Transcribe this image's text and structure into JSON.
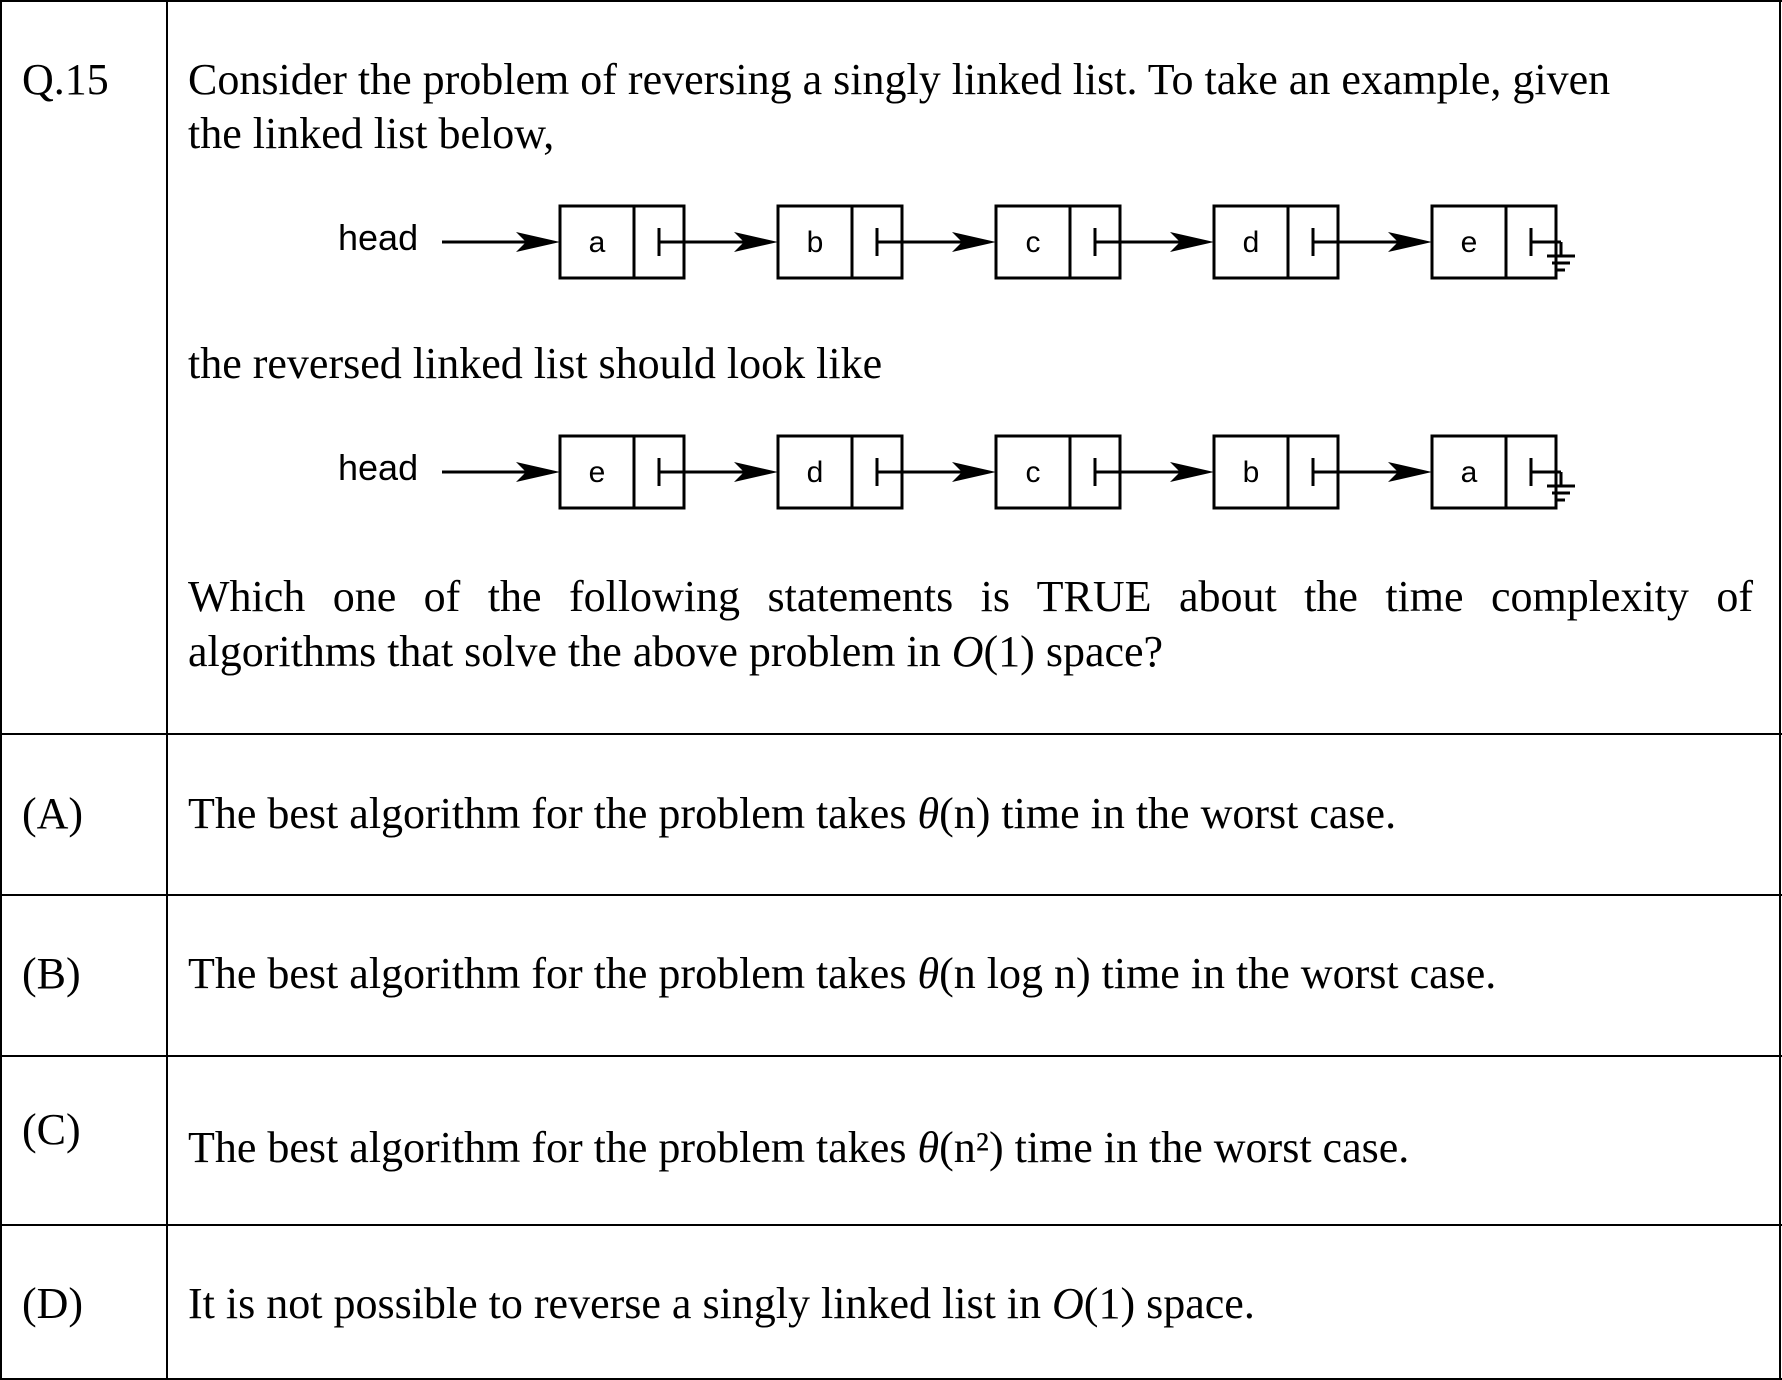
{
  "question": {
    "number": "Q.15",
    "stem_line1": "Consider the problem of reversing a singly linked list. To take an example, given",
    "stem_line2": "the linked list below,",
    "stem_line3": "the reversed linked list should look like",
    "stem_line4": "Which one of the following statements is TRUE about the time complexity of",
    "stem_line5_pre": "algorithms that solve the above problem in ",
    "stem_line5_math_O": "O",
    "stem_line5_math_arg": "(1)",
    "stem_line5_post": " space?"
  },
  "original_list": {
    "head_label": "head",
    "nodes": [
      "a",
      "b",
      "c",
      "d",
      "e"
    ]
  },
  "reversed_list": {
    "head_label": "head",
    "nodes": [
      "e",
      "d",
      "c",
      "b",
      "a"
    ]
  },
  "options": [
    {
      "label": "(A)",
      "pre": "The best algorithm for the problem takes ",
      "math_fn": "θ",
      "math_arg": "(n)",
      "post": " time in the worst case."
    },
    {
      "label": "(B)",
      "pre": "The best algorithm for the problem takes ",
      "math_fn": "θ",
      "math_arg": "(n log n)",
      "post": " time in the worst case."
    },
    {
      "label": "(C)",
      "pre": "The best algorithm for the problem takes ",
      "math_fn": "θ",
      "math_arg": "(n²)",
      "post": " time in the worst case."
    },
    {
      "label": "(D)",
      "pre": "It is not possible to reverse a singly linked list in ",
      "math_fn": "O",
      "math_arg": "(1)",
      "post": " space."
    }
  ]
}
